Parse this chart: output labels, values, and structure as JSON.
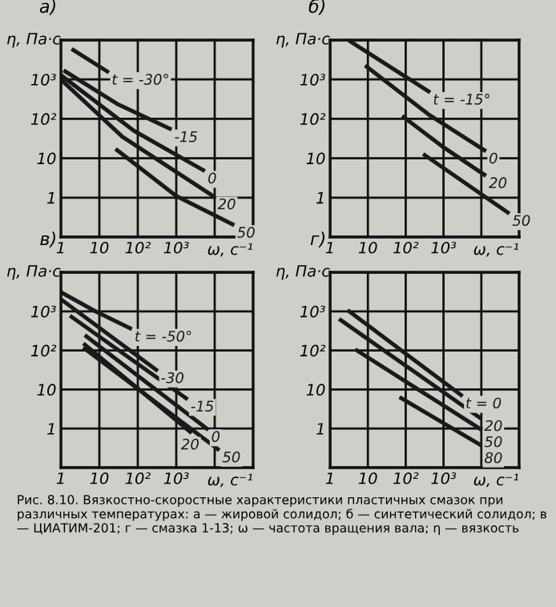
{
  "chart_data": [
    {
      "type": "line",
      "title": "а)",
      "xlabel": "ω, с⁻¹",
      "ylabel": "η, Па·с",
      "log": "xy",
      "grid": true,
      "legend": false,
      "marker": "none",
      "line_style": "solid",
      "xlim": [
        1,
        100000
      ],
      "xticks": [
        1,
        {
          "value": 10,
          "label": "10"
        },
        {
          "value": 100,
          "label": "10²"
        },
        {
          "value": 1000,
          "label": "10³"
        },
        {
          "value": 10000,
          "label": null
        },
        {
          "value": 100000,
          "label": null
        }
      ],
      "ylim": [
        0.1,
        10000
      ],
      "yticks": [
        {
          "value": 0.1,
          "label": null
        },
        1,
        {
          "value": 10,
          "label": "10"
        },
        {
          "value": 100,
          "label": "10²"
        },
        {
          "value": 1000,
          "label": "10³"
        },
        {
          "value": 10000,
          "label": null
        }
      ],
      "series": [
        {
          "name": "t = -30°",
          "color": "#1a1a1a",
          "x": [
            2.1,
            16
          ],
          "values": [
            5600,
            1600
          ]
        },
        {
          "name": "-15",
          "color": "#1a1a1a",
          "x": [
            1.3,
            29,
            680
          ],
          "values": [
            1600,
            240,
            56
          ]
        },
        {
          "name": "0",
          "color": "#1a1a1a",
          "x": [
            1.1,
            79,
            5000
          ],
          "values": [
            1200,
            50,
            5
          ]
        },
        {
          "name": "20",
          "color": "#1a1a1a",
          "x": [
            1.1,
            40,
            9100
          ],
          "values": [
            910,
            35,
            1.1
          ]
        },
        {
          "name": "50",
          "color": "#1a1a1a",
          "x": [
            29,
            1000,
            29000
          ],
          "values": [
            16,
            1.1,
            0.21
          ]
        }
      ]
    },
    {
      "type": "line",
      "title": "б)",
      "xlabel": "ω, с⁻¹",
      "ylabel": "η, Па·с",
      "log": "xy",
      "grid": true,
      "legend": false,
      "marker": "none",
      "line_style": "solid",
      "xlim": [
        1,
        100000
      ],
      "xticks": [
        1,
        {
          "value": 10,
          "label": "10"
        },
        {
          "value": 100,
          "label": "10²"
        },
        {
          "value": 1000,
          "label": "10³"
        },
        {
          "value": 10000,
          "label": null
        },
        {
          "value": 100000,
          "label": null
        }
      ],
      "ylim": [
        0.1,
        10000
      ],
      "yticks": [
        {
          "value": 0.1,
          "label": null
        },
        1,
        {
          "value": 10,
          "label": "10"
        },
        {
          "value": 100,
          "label": "10²"
        },
        {
          "value": 1000,
          "label": "10³"
        },
        {
          "value": 10000,
          "label": null
        }
      ],
      "series": [
        {
          "name": "t = -15°",
          "color": "#1a1a1a",
          "x": [
            3.5,
            400
          ],
          "values": [
            9100,
            500
          ]
        },
        {
          "name": "0",
          "color": "#1a1a1a",
          "x": [
            9.3,
            400,
            12000
          ],
          "values": [
            2100,
            130,
            16
          ]
        },
        {
          "name": "20",
          "color": "#1a1a1a",
          "x": [
            89,
            1000,
            12000
          ],
          "values": [
            110,
            19,
            3.8
          ]
        },
        {
          "name": "50",
          "color": "#1a1a1a",
          "x": [
            320,
            50000
          ],
          "values": [
            12,
            0.42
          ]
        }
      ]
    },
    {
      "type": "line",
      "title": "в)",
      "xlabel": "ω, с⁻¹",
      "ylabel": "η, Па·с",
      "log": "xy",
      "grid": true,
      "legend": false,
      "marker": "none",
      "line_style": "solid",
      "xlim": [
        1,
        100000
      ],
      "xticks": [
        1,
        {
          "value": 10,
          "label": "10"
        },
        {
          "value": 100,
          "label": "10²"
        },
        {
          "value": 1000,
          "label": "10³"
        },
        {
          "value": 10000,
          "label": null
        },
        {
          "value": 100000,
          "label": null
        }
      ],
      "ylim": [
        0.1,
        10000
      ],
      "yticks": [
        {
          "value": 0.1,
          "label": null
        },
        1,
        {
          "value": 10,
          "label": "10"
        },
        {
          "value": 100,
          "label": "10²"
        },
        {
          "value": 1000,
          "label": "10³"
        },
        {
          "value": 10000,
          "label": null
        }
      ],
      "series": [
        {
          "name": "t = -50°",
          "color": "#1a1a1a",
          "x": [
            1.1,
            7.9,
            63
          ],
          "values": [
            2950,
            1000,
            370
          ]
        },
        {
          "name": "-30",
          "color": "#1a1a1a",
          "x": [
            1.1,
            300
          ],
          "values": [
            1900,
            32
          ]
        },
        {
          "name": "-15",
          "color": "#1a1a1a",
          "x": [
            1.9,
            1800
          ],
          "values": [
            720,
            6
          ]
        },
        {
          "name": "0",
          "color": "#1a1a1a",
          "x": [
            4.6,
            6200
          ],
          "values": [
            230,
            1
          ]
        },
        {
          "name": "20",
          "color": "#1a1a1a",
          "x": [
            4.2,
            2300
          ],
          "values": [
            140,
            0.83
          ]
        },
        {
          "name": "50",
          "color": "#1a1a1a",
          "x": [
            4.2,
            12000
          ],
          "values": [
            110,
            0.3
          ]
        }
      ]
    },
    {
      "type": "line",
      "title": "г)",
      "xlabel": "ω, с⁻¹",
      "ylabel": "η, Па·с",
      "log": "xy",
      "grid": true,
      "legend": false,
      "marker": "none",
      "line_style": "solid",
      "xlim": [
        1,
        100000
      ],
      "xticks": [
        1,
        {
          "value": 10,
          "label": "10"
        },
        {
          "value": 100,
          "label": "10²"
        },
        {
          "value": 1000,
          "label": "10³"
        },
        {
          "value": 10000,
          "label": null
        },
        {
          "value": 100000,
          "label": null
        }
      ],
      "ylim": [
        0.1,
        10000
      ],
      "yticks": [
        {
          "value": 0.1,
          "label": null
        },
        1,
        {
          "value": 10,
          "label": "10"
        },
        {
          "value": 100,
          "label": "10²"
        },
        {
          "value": 1000,
          "label": "10³"
        },
        {
          "value": 10000,
          "label": null
        }
      ],
      "series": [
        {
          "name": "t = 0",
          "color": "#1a1a1a",
          "x": [
            3.2,
            2900
          ],
          "values": [
            1000,
            7.2
          ]
        },
        {
          "name": "20",
          "color": "#1a1a1a",
          "x": [
            1.9,
            9100
          ],
          "values": [
            600,
            1.9
          ]
        },
        {
          "name": "50",
          "color": "#1a1a1a",
          "x": [
            5.1,
            9100
          ],
          "values": [
            100,
            1
          ]
        },
        {
          "name": "80",
          "color": "#1a1a1a",
          "x": [
            76,
            9100
          ],
          "values": [
            6,
            0.39
          ]
        }
      ],
      "annotations": [
        "Рис. 8.10. Вязкостно-скоростные характеристики пластичных смазок при различных температурах: а — жировой солидол; б — синтетический солидол; в — ЦИАТИМ-201; г — смазка 1-13; ω — частота вращения вала; η — вязкость"
      ]
    }
  ]
}
